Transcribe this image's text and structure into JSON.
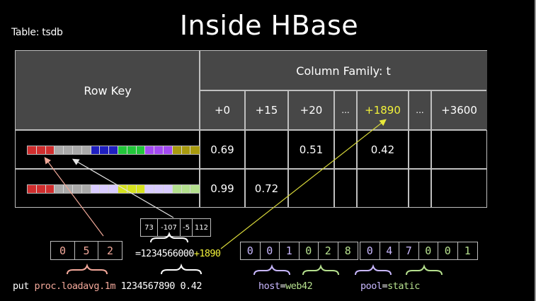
{
  "slide": {
    "title": "Inside HBase",
    "table_label": "Table: tsdb"
  },
  "table": {
    "row_key_header": "Row Key",
    "column_family_header": "Column Family: t",
    "columns": [
      "+0",
      "+15",
      "+20",
      "...",
      "+1890",
      "...",
      "+3600"
    ],
    "highlight_column": "+1890",
    "rows": [
      {
        "cells": [
          "0.69",
          "",
          "0.51",
          "",
          "0.42",
          "",
          ""
        ],
        "key_colors": [
          "#d02e2e",
          "#d02e2e",
          "#d02e2e",
          "#aaaaaa",
          "#aaaaaa",
          "#aaaaaa",
          "#aaaaaa",
          "#1f1fc0",
          "#1f1fc0",
          "#1f1fc0",
          "#22c63a",
          "#22c63a",
          "#22c63a",
          "#a44af2",
          "#a44af2",
          "#a44af2",
          "#a89a0e",
          "#a89a0e",
          "#a89a0e"
        ]
      },
      {
        "cells": [
          "0.99",
          "0.72",
          "",
          "",
          "",
          "",
          ""
        ],
        "key_colors": [
          "#d02e2e",
          "#d02e2e",
          "#d02e2e",
          "#aaaaaa",
          "#aaaaaa",
          "#aaaaaa",
          "#aaaaaa",
          "#d9ccff",
          "#d9ccff",
          "#d9ccff",
          "#d6e21e",
          "#d6e21e",
          "#d6e21e",
          "#d9ccff",
          "#d9ccff",
          "#d9ccff",
          "#b4e08e",
          "#b4e08e",
          "#b4e08e"
        ]
      }
    ]
  },
  "encoding": {
    "metric_uid": [
      "0",
      "5",
      "2"
    ],
    "base_time_bytes": [
      "73",
      "-107",
      "-5",
      "112"
    ],
    "base_time_expr": "=1234566000",
    "offset_expr": "+1890",
    "tag_uids": [
      {
        "value": "0",
        "color": "#c9b8ff"
      },
      {
        "value": "0",
        "color": "#c9b8ff"
      },
      {
        "value": "1",
        "color": "#c9b8ff"
      },
      {
        "value": "0",
        "color": "#b6e08e"
      },
      {
        "value": "2",
        "color": "#b6e08e"
      },
      {
        "value": "8",
        "color": "#b6e08e"
      }
    ],
    "tag_uids_2": [
      {
        "value": "0",
        "color": "#c9b8ff"
      },
      {
        "value": "4",
        "color": "#c9b8ff"
      },
      {
        "value": "7",
        "color": "#c9b8ff"
      },
      {
        "value": "0",
        "color": "#b6e08e"
      },
      {
        "value": "0",
        "color": "#b6e08e"
      },
      {
        "value": "1",
        "color": "#b6e08e"
      }
    ]
  },
  "command": {
    "put": "put",
    "metric": "proc.loadavg.1m",
    "timestamp": "1234567890",
    "value": "0.42",
    "tag1_key": "host",
    "tag1_eq": "=",
    "tag1_val": "web42",
    "tag2_key": "pool",
    "tag2_eq": "=",
    "tag2_val": "static"
  },
  "colors": {
    "header_bg": "#474747",
    "grid": "#bfbfbf",
    "highlight": "#f2f23a",
    "metric_color": "#f3a89a",
    "tagk_color": "#c9b8ff",
    "tagv_color": "#b6e08e",
    "arrow_metric": "#f0a898",
    "arrow_time": "#e6e6e6"
  }
}
